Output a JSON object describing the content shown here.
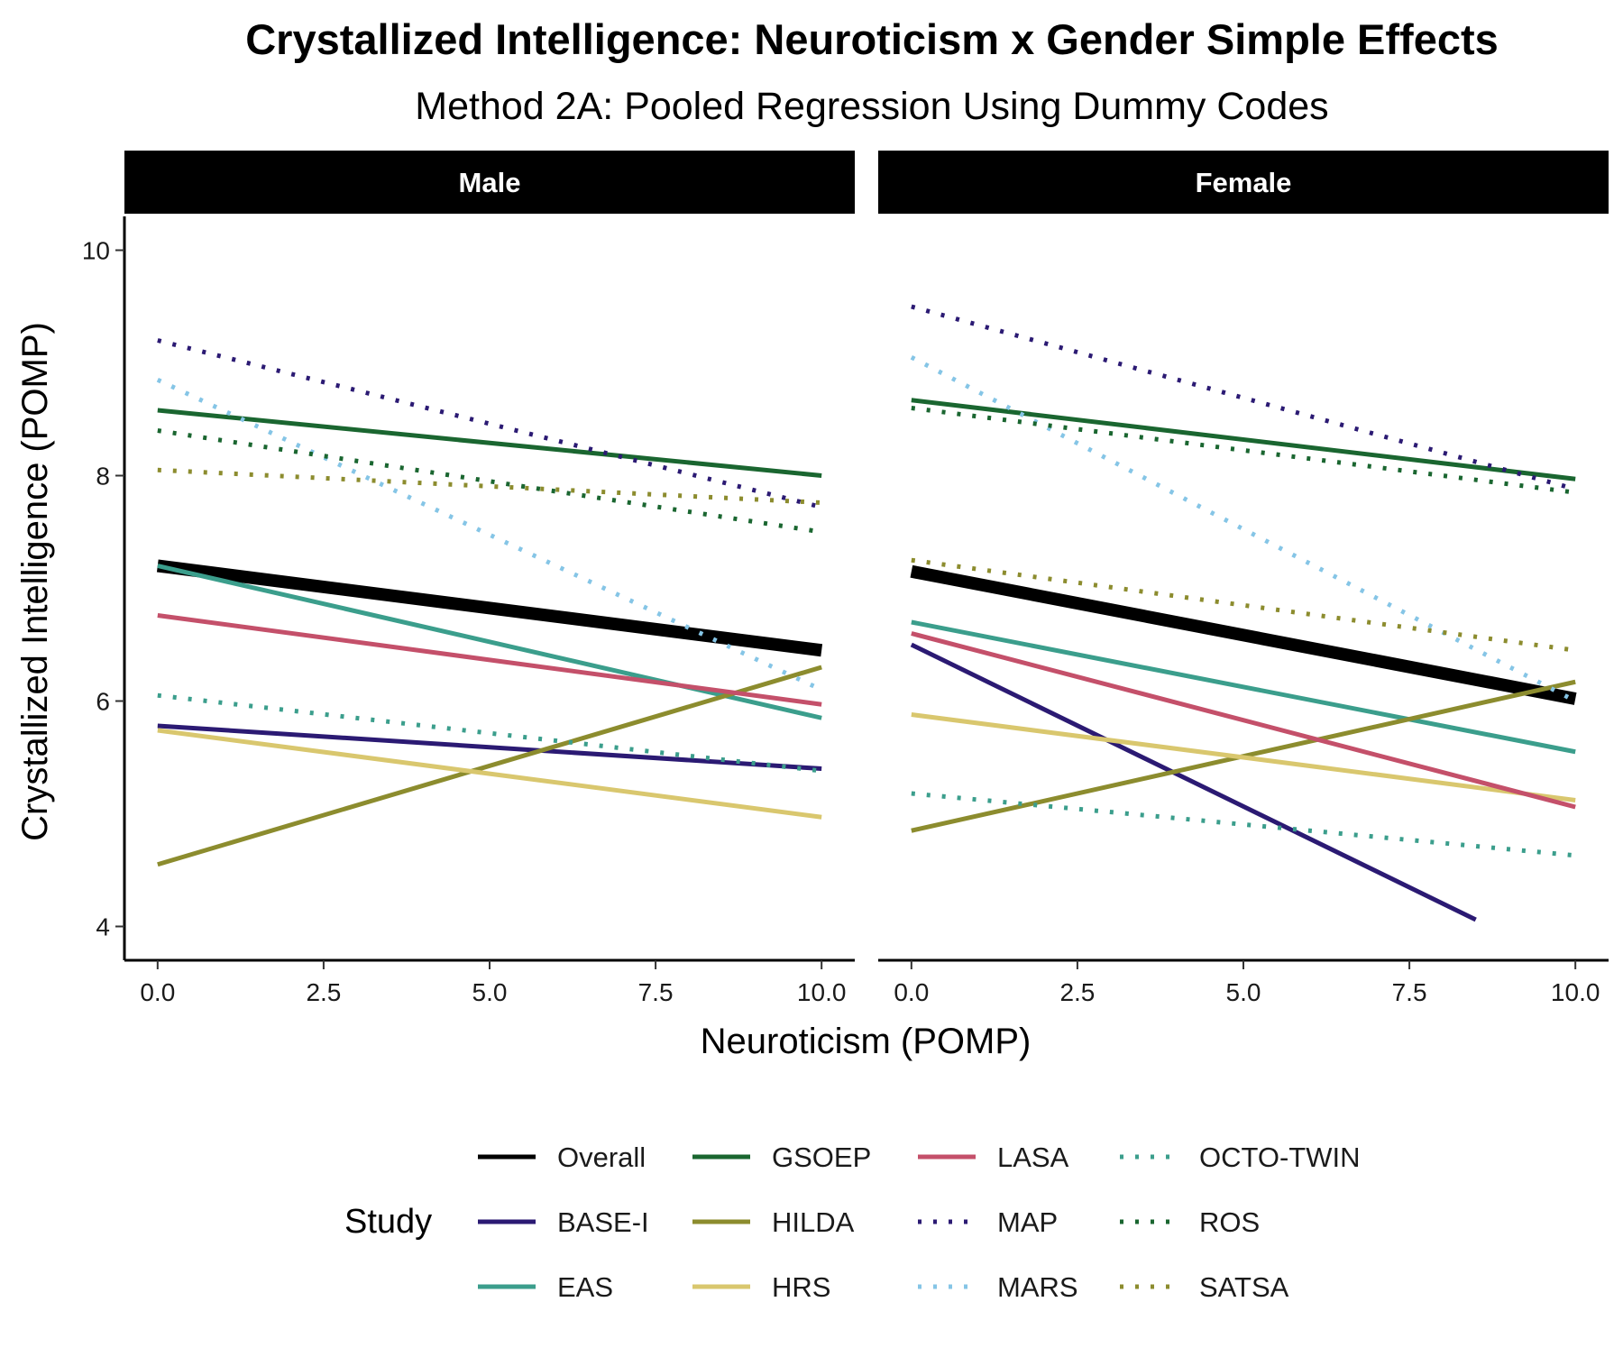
{
  "chart_data": {
    "type": "line",
    "title": "Crystallized Intelligence: Neuroticism x Gender Simple Effects",
    "subtitle": "Method 2A: Pooled Regression Using Dummy Codes",
    "xlabel": "Neuroticism (POMP)",
    "ylabel": "Crystallized Intelligence (POMP)",
    "xlim": [
      -0.5,
      10.5
    ],
    "ylim": [
      3.7,
      10.3
    ],
    "x_ticks": [
      0,
      2.5,
      5,
      7.5,
      10
    ],
    "x_tick_labels": [
      "0.0",
      "2.5",
      "5.0",
      "7.5",
      "10.0"
    ],
    "y_ticks": [
      4,
      6,
      8,
      10
    ],
    "y_tick_labels": [
      "4",
      "6",
      "8",
      "10"
    ],
    "grid": false,
    "legend": {
      "title": "Study",
      "position": "bottom"
    },
    "panels": [
      "Male",
      "Female"
    ],
    "series": [
      {
        "name": "Overall",
        "color": "#000000",
        "dash": "solid",
        "width": "thick",
        "values": {
          "Male": [
            [
              0,
              7.2
            ],
            [
              10,
              6.45
            ]
          ],
          "Female": [
            [
              0,
              7.15
            ],
            [
              10,
              6.02
            ]
          ]
        }
      },
      {
        "name": "BASE-I",
        "color": "#2b1a73",
        "dash": "solid",
        "values": {
          "Male": [
            [
              0,
              5.78
            ],
            [
              10,
              5.4
            ]
          ],
          "Female": [
            [
              0,
              6.5
            ],
            [
              8.5,
              4.06
            ]
          ]
        }
      },
      {
        "name": "EAS",
        "color": "#3b9e8c",
        "dash": "solid",
        "values": {
          "Male": [
            [
              0,
              7.2
            ],
            [
              10,
              5.85
            ]
          ],
          "Female": [
            [
              0,
              6.7
            ],
            [
              10,
              5.55
            ]
          ]
        }
      },
      {
        "name": "GSOEP",
        "color": "#1a6630",
        "dash": "solid",
        "values": {
          "Male": [
            [
              0,
              8.58
            ],
            [
              10,
              8.0
            ]
          ],
          "Female": [
            [
              0,
              8.67
            ],
            [
              10,
              7.97
            ]
          ]
        }
      },
      {
        "name": "HILDA",
        "color": "#8c8c2e",
        "dash": "solid",
        "values": {
          "Male": [
            [
              0,
              4.55
            ],
            [
              10,
              6.3
            ]
          ],
          "Female": [
            [
              0,
              4.85
            ],
            [
              10,
              6.17
            ]
          ]
        }
      },
      {
        "name": "HRS",
        "color": "#d9c76e",
        "dash": "solid",
        "values": {
          "Male": [
            [
              0,
              5.74
            ],
            [
              10,
              4.97
            ]
          ],
          "Female": [
            [
              0,
              5.88
            ],
            [
              10,
              5.12
            ]
          ]
        }
      },
      {
        "name": "LASA",
        "color": "#c4506a",
        "dash": "solid",
        "values": {
          "Male": [
            [
              0,
              6.76
            ],
            [
              10,
              5.97
            ]
          ],
          "Female": [
            [
              0,
              6.6
            ],
            [
              10,
              5.06
            ]
          ]
        }
      },
      {
        "name": "MAP",
        "color": "#2b1a73",
        "dash": "dotted",
        "values": {
          "Male": [
            [
              0,
              9.2
            ],
            [
              10,
              7.72
            ]
          ],
          "Female": [
            [
              0,
              9.5
            ],
            [
              10,
              7.88
            ]
          ]
        }
      },
      {
        "name": "MARS",
        "color": "#85c5e6",
        "dash": "dotted",
        "values": {
          "Male": [
            [
              0,
              8.85
            ],
            [
              10,
              6.1
            ]
          ],
          "Female": [
            [
              0,
              9.05
            ],
            [
              10,
              6.0
            ]
          ]
        }
      },
      {
        "name": "OCTO-TWIN",
        "color": "#3b9e8c",
        "dash": "dotted",
        "values": {
          "Male": [
            [
              0,
              6.05
            ],
            [
              10,
              5.38
            ]
          ],
          "Female": [
            [
              0,
              5.18
            ],
            [
              10,
              4.63
            ]
          ]
        }
      },
      {
        "name": "ROS",
        "color": "#1a6630",
        "dash": "dotted",
        "values": {
          "Male": [
            [
              0,
              8.4
            ],
            [
              10,
              7.5
            ]
          ],
          "Female": [
            [
              0,
              8.6
            ],
            [
              10,
              7.85
            ]
          ]
        }
      },
      {
        "name": "SATSA",
        "color": "#8c8c2e",
        "dash": "dotted",
        "values": {
          "Male": [
            [
              0,
              8.05
            ],
            [
              10,
              7.76
            ]
          ],
          "Female": [
            [
              0,
              7.25
            ],
            [
              10,
              6.45
            ]
          ]
        }
      }
    ]
  }
}
